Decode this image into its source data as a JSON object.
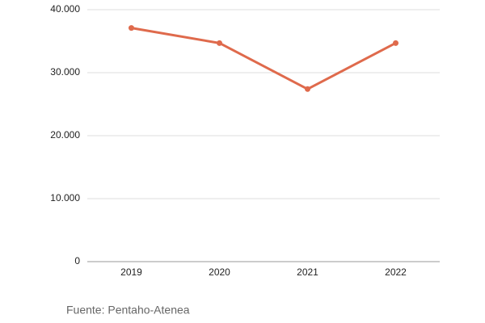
{
  "chart_data": {
    "type": "line",
    "categories": [
      "2019",
      "2020",
      "2021",
      "2022"
    ],
    "values": [
      37100,
      34700,
      27400,
      34700
    ],
    "color": "#df6a4c",
    "ylim": [
      0,
      40000
    ],
    "yticks": [
      0,
      {
        "value": 10000,
        "label": "10.000"
      },
      {
        "value": 20000,
        "label": "20.000"
      },
      {
        "value": 30000,
        "label": "30.000"
      },
      {
        "value": 40000,
        "label": "40.000"
      }
    ],
    "grid": true,
    "note": "Fuente: Pentaho-Atenea"
  }
}
